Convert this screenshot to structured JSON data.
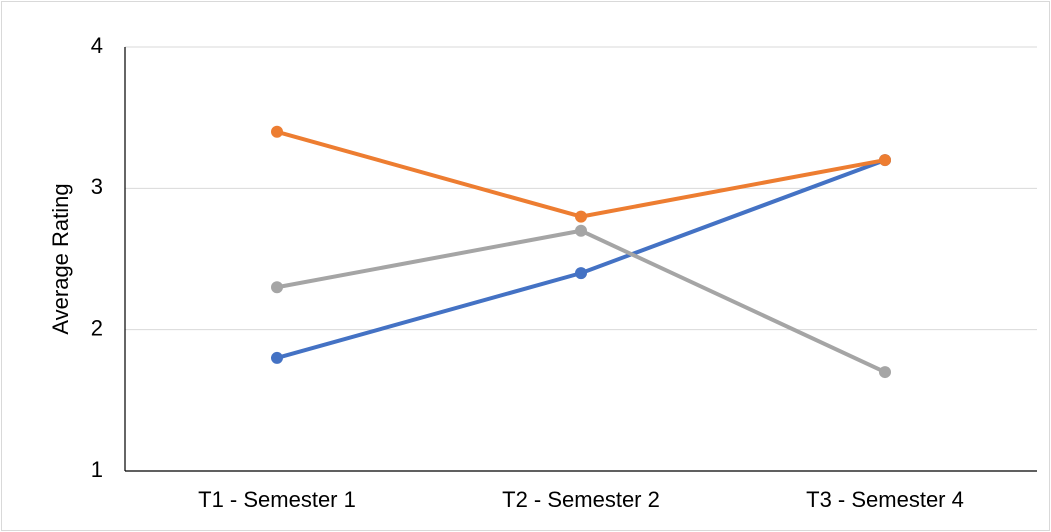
{
  "chart_data": {
    "type": "line",
    "y_label": "Average Rating",
    "categories": [
      "T1 - Semester 1",
      "T2 - Semester 2",
      "T3 - Semester 4"
    ],
    "series": [
      {
        "color": "#4472c4",
        "values": [
          1.8,
          2.4,
          3.2
        ]
      },
      {
        "color": "#ed7d31",
        "values": [
          3.4,
          2.8,
          3.2
        ]
      },
      {
        "color": "#a5a5a5",
        "values": [
          2.3,
          2.7,
          1.7
        ]
      }
    ],
    "ylim": [
      1,
      4
    ],
    "yticks": [
      1,
      2,
      3,
      4
    ],
    "grid": true
  }
}
